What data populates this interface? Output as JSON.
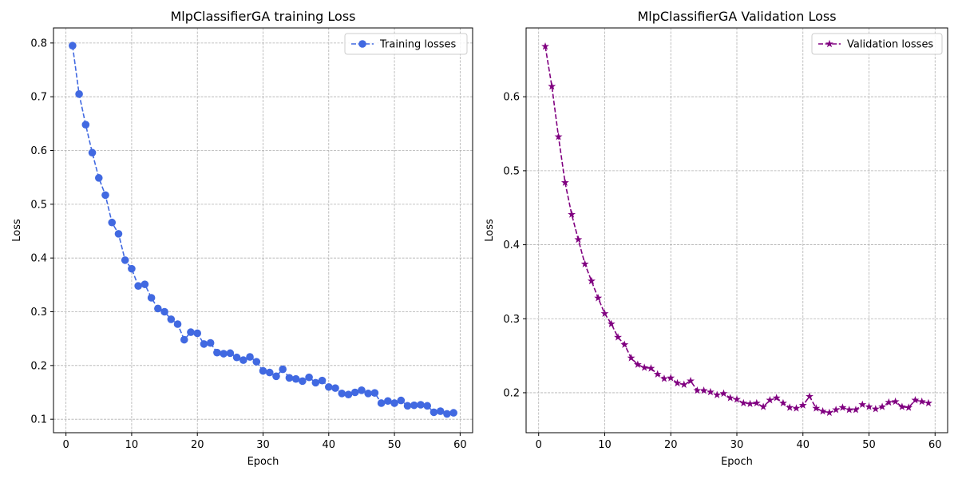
{
  "chart_data": [
    {
      "type": "line",
      "title": "MlpClassifierGA training Loss",
      "xlabel": "Epoch",
      "ylabel": "Loss",
      "xlim": [
        -1.9,
        61.9
      ],
      "ylim": [
        0.075,
        0.828
      ],
      "xticks": [
        0,
        10,
        20,
        30,
        40,
        50,
        60
      ],
      "yticks": [
        0.1,
        0.2,
        0.3,
        0.4,
        0.5,
        0.6,
        0.7,
        0.8
      ],
      "ytick_format": 1,
      "grid": true,
      "legend_position": "top-right",
      "series": [
        {
          "name": "Training losses",
          "color": "#4169e1",
          "linestyle": "dashed",
          "marker": "circle",
          "x": [
            1,
            2,
            3,
            4,
            5,
            6,
            7,
            8,
            9,
            10,
            11,
            12,
            13,
            14,
            15,
            16,
            17,
            18,
            19,
            20,
            21,
            22,
            23,
            24,
            25,
            26,
            27,
            28,
            29,
            30,
            31,
            32,
            33,
            34,
            35,
            36,
            37,
            38,
            39,
            40,
            41,
            42,
            43,
            44,
            45,
            46,
            47,
            48,
            49,
            50,
            51,
            52,
            53,
            54,
            55,
            56,
            57,
            58,
            59
          ],
          "values": [
            0.795,
            0.705,
            0.648,
            0.596,
            0.549,
            0.517,
            0.466,
            0.445,
            0.396,
            0.38,
            0.348,
            0.351,
            0.326,
            0.306,
            0.3,
            0.286,
            0.277,
            0.248,
            0.262,
            0.26,
            0.24,
            0.242,
            0.224,
            0.222,
            0.223,
            0.215,
            0.21,
            0.216,
            0.207,
            0.19,
            0.187,
            0.18,
            0.193,
            0.177,
            0.175,
            0.171,
            0.178,
            0.168,
            0.172,
            0.16,
            0.158,
            0.148,
            0.146,
            0.15,
            0.154,
            0.148,
            0.149,
            0.13,
            0.134,
            0.13,
            0.135,
            0.125,
            0.126,
            0.127,
            0.125,
            0.113,
            0.115,
            0.11,
            0.112
          ]
        }
      ]
    },
    {
      "type": "line",
      "title": "MlpClassifierGA Validation Loss",
      "xlabel": "Epoch",
      "ylabel": "Loss",
      "xlim": [
        -1.9,
        61.9
      ],
      "ylim": [
        0.146,
        0.693
      ],
      "xticks": [
        0,
        10,
        20,
        30,
        40,
        50,
        60
      ],
      "yticks": [
        0.2,
        0.3,
        0.4,
        0.5,
        0.6
      ],
      "ytick_format": 1,
      "grid": true,
      "legend_position": "top-right",
      "series": [
        {
          "name": "Validation losses",
          "color": "#800080",
          "linestyle": "dashed",
          "marker": "star",
          "x": [
            1,
            2,
            3,
            4,
            5,
            6,
            7,
            8,
            9,
            10,
            11,
            12,
            13,
            14,
            15,
            16,
            17,
            18,
            19,
            20,
            21,
            22,
            23,
            24,
            25,
            26,
            27,
            28,
            29,
            30,
            31,
            32,
            33,
            34,
            35,
            36,
            37,
            38,
            39,
            40,
            41,
            42,
            43,
            44,
            45,
            46,
            47,
            48,
            49,
            50,
            51,
            52,
            53,
            54,
            55,
            56,
            57,
            58,
            59
          ],
          "values": [
            0.668,
            0.614,
            0.546,
            0.484,
            0.441,
            0.407,
            0.374,
            0.351,
            0.328,
            0.307,
            0.293,
            0.275,
            0.265,
            0.247,
            0.238,
            0.234,
            0.233,
            0.225,
            0.219,
            0.22,
            0.213,
            0.211,
            0.216,
            0.203,
            0.203,
            0.201,
            0.197,
            0.199,
            0.193,
            0.191,
            0.186,
            0.185,
            0.186,
            0.181,
            0.19,
            0.193,
            0.186,
            0.18,
            0.179,
            0.183,
            0.195,
            0.179,
            0.175,
            0.173,
            0.177,
            0.18,
            0.177,
            0.177,
            0.184,
            0.181,
            0.178,
            0.181,
            0.187,
            0.188,
            0.181,
            0.18,
            0.19,
            0.188,
            0.186
          ]
        }
      ]
    }
  ]
}
